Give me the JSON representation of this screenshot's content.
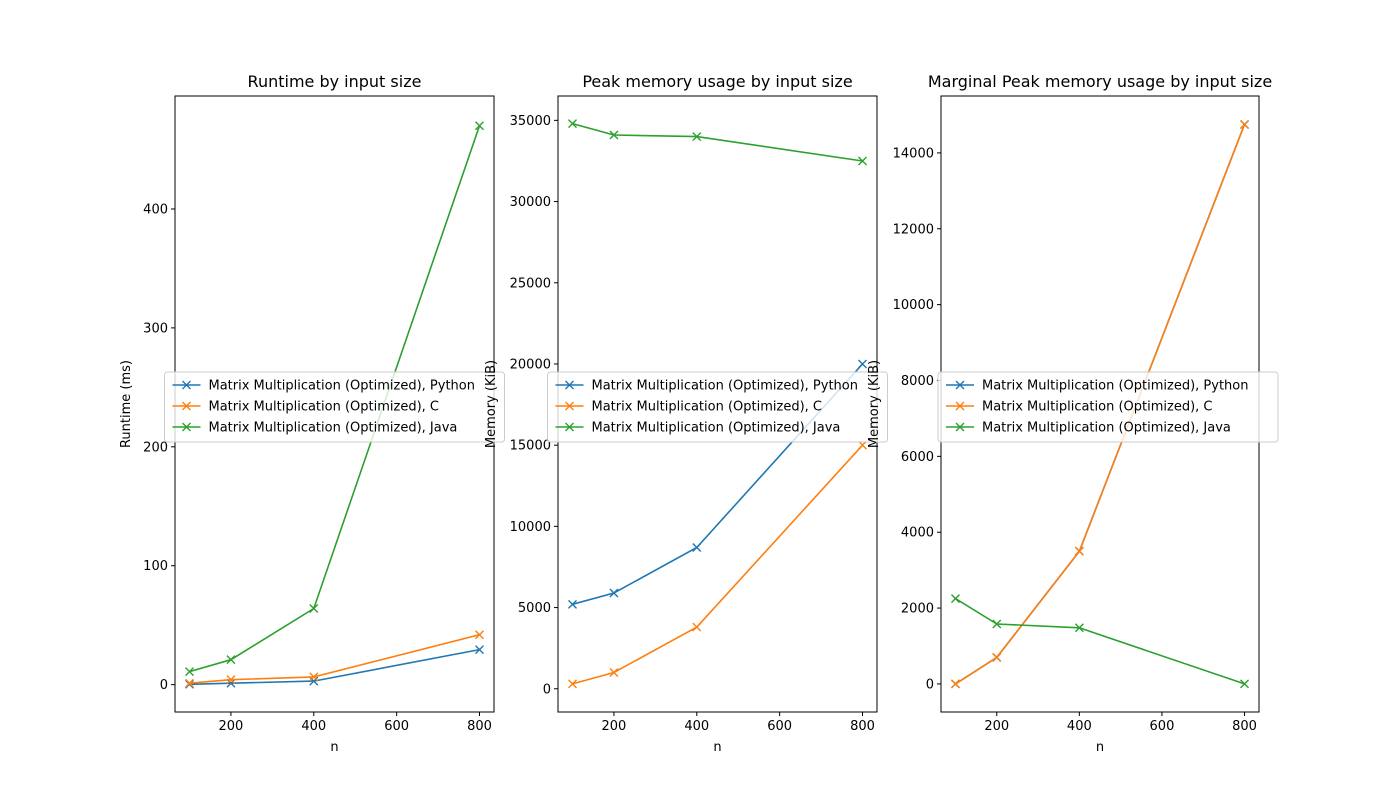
{
  "figure": {
    "background": "#ffffff"
  },
  "chart_data": [
    {
      "type": "line",
      "title": "Runtime by input size",
      "xlabel": "n",
      "ylabel": "Runtime (ms)",
      "x": [
        100,
        200,
        400,
        800
      ],
      "xlim": [
        65,
        835
      ],
      "ylim": [
        -23,
        495
      ],
      "xticks": [
        200,
        400,
        600,
        800
      ],
      "yticks": [
        0,
        100,
        200,
        300,
        400
      ],
      "marker": "x",
      "legend_loc": "center",
      "series": [
        {
          "name": "Matrix Multiplication (Optimized), Python",
          "color": "#1f77b4",
          "values": [
            0.3,
            1.2,
            3.0,
            29.5
          ]
        },
        {
          "name": "Matrix Multiplication (Optimized), C",
          "color": "#ff7f0e",
          "values": [
            1.2,
            4.2,
            6.5,
            42.0
          ]
        },
        {
          "name": "Matrix Multiplication (Optimized), Java",
          "color": "#2ca02c",
          "values": [
            11.0,
            21.0,
            64.0,
            470.0
          ]
        }
      ]
    },
    {
      "type": "line",
      "title": "Peak memory usage by input size",
      "xlabel": "n",
      "ylabel": "Memory (KiB)",
      "x": [
        100,
        200,
        400,
        800
      ],
      "xlim": [
        65,
        835
      ],
      "ylim": [
        -1430,
        36500
      ],
      "xticks": [
        200,
        400,
        600,
        800
      ],
      "yticks": [
        0,
        5000,
        10000,
        15000,
        20000,
        25000,
        30000,
        35000
      ],
      "marker": "x",
      "legend_loc": "center",
      "series": [
        {
          "name": "Matrix Multiplication (Optimized), Python",
          "color": "#1f77b4",
          "values": [
            5200,
            5900,
            8700,
            20000
          ]
        },
        {
          "name": "Matrix Multiplication (Optimized), C",
          "color": "#ff7f0e",
          "values": [
            300,
            1000,
            3800,
            15000
          ]
        },
        {
          "name": "Matrix Multiplication (Optimized), Java",
          "color": "#2ca02c",
          "values": [
            34800,
            34100,
            34000,
            32500
          ]
        }
      ]
    },
    {
      "type": "line",
      "title": "Marginal Peak memory usage by input size",
      "xlabel": "n",
      "ylabel": "Memory (KiB)",
      "x": [
        100,
        200,
        400,
        800
      ],
      "xlim": [
        65,
        835
      ],
      "ylim": [
        -740,
        15500
      ],
      "xticks": [
        200,
        400,
        600,
        800
      ],
      "yticks": [
        0,
        2000,
        4000,
        6000,
        8000,
        10000,
        12000,
        14000
      ],
      "marker": "x",
      "legend_loc": "center",
      "series": [
        {
          "name": "Matrix Multiplication (Optimized), Python",
          "color": "#1f77b4",
          "values": [
            0,
            700,
            3500,
            14750
          ]
        },
        {
          "name": "Matrix Multiplication (Optimized), C",
          "color": "#ff7f0e",
          "values": [
            0,
            700,
            3500,
            14750
          ]
        },
        {
          "name": "Matrix Multiplication (Optimized), Java",
          "color": "#2ca02c",
          "values": [
            2250,
            1580,
            1480,
            0
          ]
        }
      ]
    }
  ]
}
